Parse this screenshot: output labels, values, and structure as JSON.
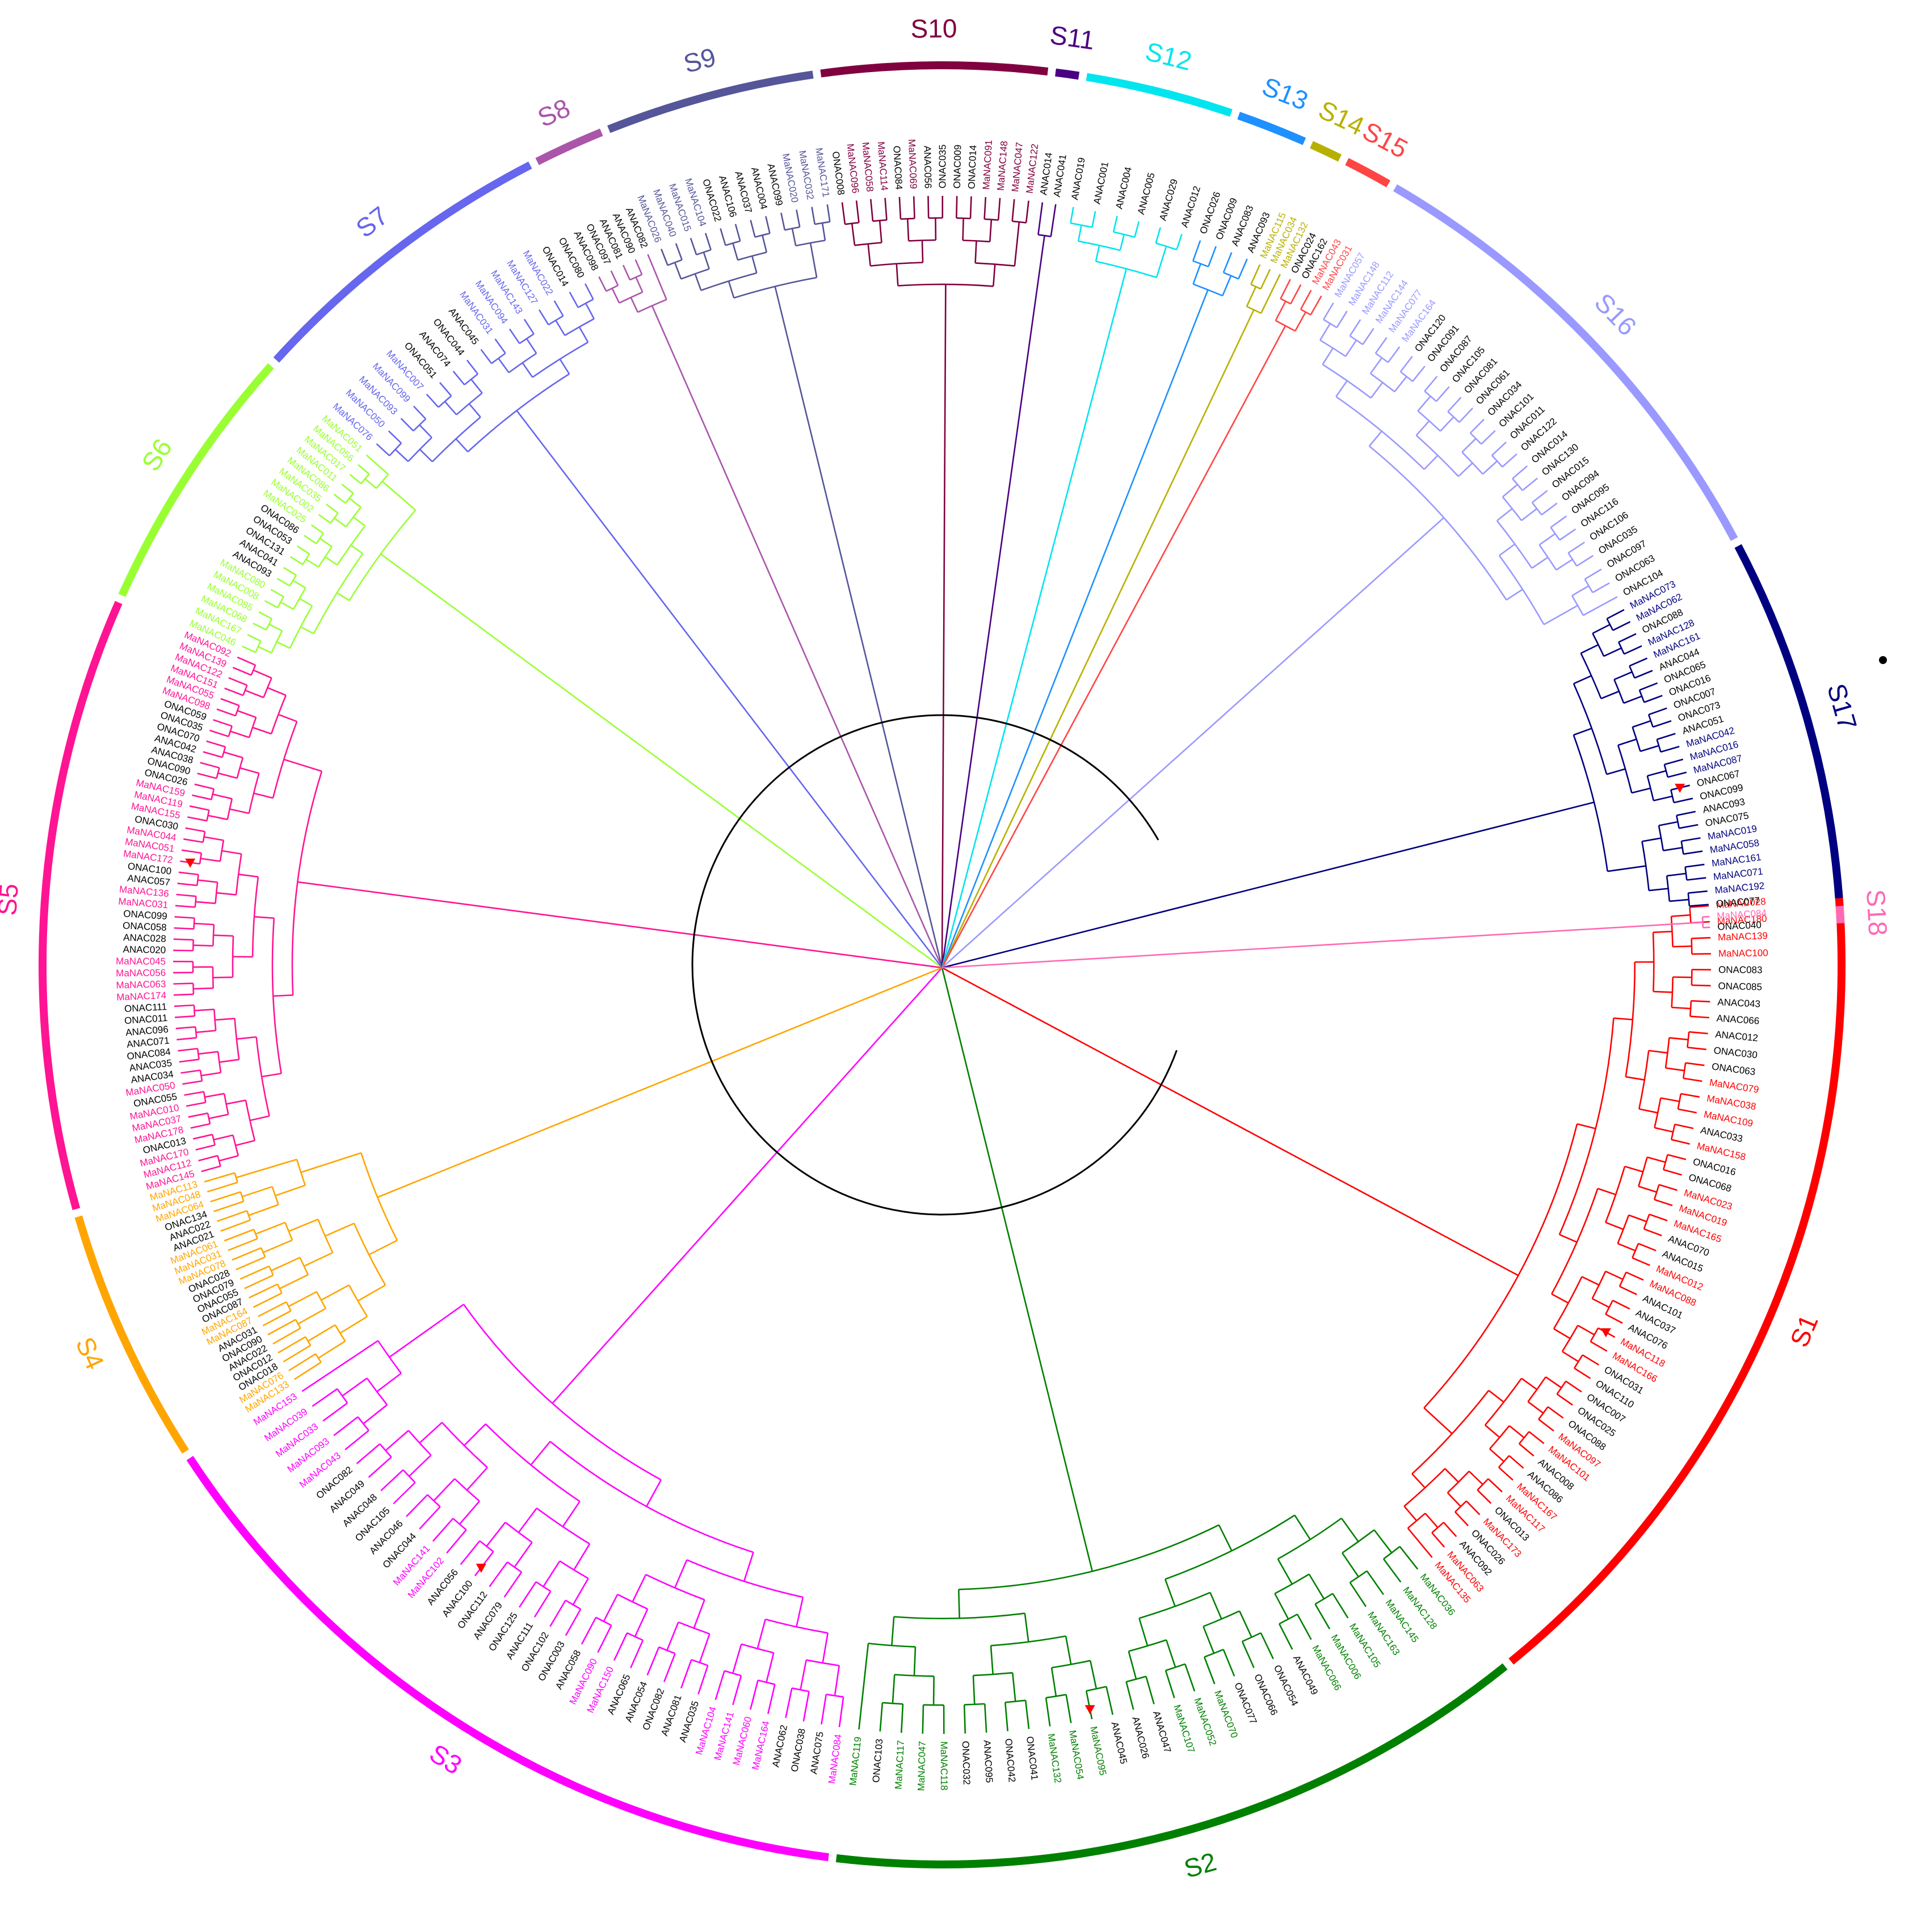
{
  "figure": {
    "subfamilies": [
      {
        "name": "S1",
        "color": "#ff0000",
        "labels": [
          "MaNAC028",
          "MaNAC180",
          "MaNAC139",
          "MaNAC100",
          "ONAC083",
          "ONAC085",
          "ANAC043",
          "ANAC066",
          "ANAC012",
          "ONAC030",
          "ONAC063",
          "MaNAC079",
          "MaNAC038",
          "MaNAC109",
          "ANAC033",
          "MaNAC158",
          "ONAC016",
          "ONAC068",
          "MaNAC023",
          "MaNAC019",
          "MaNAC165",
          "ANAC070",
          "ANAC015",
          "MaNAC012",
          "MaNAC088",
          "ANAC101",
          "ANAC037",
          "ANAC076",
          "MaNAC118",
          "MaNAC166",
          "ONAC031",
          "ONAC110",
          "ONAC007",
          "ONAC025",
          "ONAC088",
          "MaNAC097",
          "MaNAC101",
          "ANAC008",
          "ANAC086",
          "MaNAC167",
          "MaNAC117",
          "ONAC013",
          "MaNAC173",
          "ONAC026",
          "ANAC092",
          "MaNAC063",
          "MaNAC135"
        ]
      },
      {
        "name": "S2",
        "color": "#008000",
        "labels": [
          "MaNAC036",
          "MaNAC128",
          "MaNAC145",
          "MaNAC163",
          "MaNAC105",
          "MaNAC006",
          "MaNAC066",
          "ANAC049",
          "ONAC054",
          "ONAC066",
          "ONAC077",
          "MaNAC070",
          "MaNAC052",
          "MaNAC107",
          "ANAC047",
          "ANAC026",
          "ANAC045",
          "MaNAC095",
          "MaNAC054",
          "MaNAC132",
          "ONAC041",
          "ONAC042",
          "ANAC095",
          "ONAC032",
          "MaNAC118",
          "MaNAC047",
          "MaNAC117",
          "ONAC103",
          "MaNAC119"
        ]
      },
      {
        "name": "S3",
        "color": "#ff00ff",
        "labels": [
          "MaNAC084",
          "ANAC075",
          "ONAC038",
          "ANAC062",
          "MaNAC164",
          "MaNAC060",
          "MaNAC141",
          "MaNAC104",
          "ANAC035",
          "ANAC081",
          "ONAC082",
          "ANAC054",
          "ANAC065",
          "MaNAC150",
          "MaNAC090",
          "ANAC058",
          "ONAC003",
          "ONAC102",
          "ANAC111",
          "ONAC125",
          "ANAC079",
          "ONAC112",
          "ANAC100",
          "ANAC056",
          "MaNAC102",
          "MaNAC141",
          "ONAC044",
          "ANAC046",
          "ONAC105",
          "ANAC048",
          "ANAC049",
          "ONAC082",
          "MaNAC043",
          "MaNAC093",
          "MaNAC033",
          "MaNAC039",
          "MaNAC153"
        ]
      },
      {
        "name": "S4",
        "color": "#ffa500",
        "labels": [
          "MaNAC133",
          "MaNAC076",
          "ONAC018",
          "ONAC012",
          "ANAC022",
          "ONAC090",
          "ANAC031",
          "MaNAC087",
          "MaNAC164",
          "ONAC087",
          "ONAC055",
          "ONAC079",
          "ONAC028",
          "MaNAC078",
          "MaNAC031",
          "MaNAC061",
          "ANAC021",
          "ANAC022",
          "ONAC134",
          "MaNAC064",
          "MaNAC048",
          "MaNAC113"
        ]
      },
      {
        "name": "S5",
        "color": "#ff1493",
        "labels": [
          "MaNAC145",
          "MaNAC112",
          "MaNAC170",
          "ONAC013",
          "MaNAC178",
          "MaNAC037",
          "MaNAC010",
          "ONAC055",
          "MaNAC050",
          "ANAC034",
          "ANAC035",
          "ONAC084",
          "ANAC071",
          "ANAC096",
          "ONAC011",
          "ONAC111",
          "MaNAC174",
          "MaNAC063",
          "MaNAC056",
          "MaNAC045",
          "ANAC020",
          "ANAC028",
          "ONAC058",
          "ONAC099",
          "MaNAC031",
          "MaNAC136",
          "ANAC057",
          "ONAC100",
          "MaNAC172",
          "MaNAC051",
          "MaNAC044",
          "ONAC030",
          "MaNAC155",
          "MaNAC119",
          "MaNAC159",
          "ONAC026",
          "ONAC090",
          "ANAC038",
          "ANAC042",
          "ONAC070",
          "ONAC035",
          "ONAC059",
          "MaNAC098",
          "MaNAC055",
          "MaNAC151",
          "MaNAC122",
          "MaNAC139",
          "MaNAC092"
        ]
      },
      {
        "name": "S6",
        "color": "#99ff33",
        "labels": [
          "MaNAC046",
          "MaNAC167",
          "MaNAC068",
          "MaNAC085",
          "MaNAC008",
          "MaNAC080",
          "ANAC093",
          "ANAC041",
          "ONAC131",
          "ONAC053",
          "ONAC086",
          "MaNAC025",
          "MaNAC002",
          "MaNAC035",
          "MaNAC086",
          "MaNAC011",
          "MaNAC017",
          "MaNAC056",
          "MaNAC051"
        ]
      },
      {
        "name": "S7",
        "color": "#6666ee",
        "labels": [
          "MaNAC076",
          "MaNAC050",
          "MaNAC093",
          "MaNAC099",
          "MaNAC007",
          "ONAC051",
          "ANAC074",
          "ONAC044",
          "ANAC045",
          "MaNAC031",
          "MaNAC094",
          "MaNAC143",
          "MaNAC127",
          "MaNAC022",
          "ONAC014",
          "ONAC080"
        ]
      },
      {
        "name": "S8",
        "color": "#aa55aa",
        "labels": [
          "ANAC098",
          "ONAC097",
          "ANAC081",
          "ANAC090",
          "ANAC082"
        ]
      },
      {
        "name": "S9",
        "color": "#555599",
        "labels": [
          "MaNAC026",
          "MaNAC040",
          "MaNAC015",
          "MaNAC104",
          "ONAC022",
          "ANAC106",
          "ANAC037",
          "ANAC004",
          "ANAC099",
          "MaNAC020",
          "MaNAC032",
          "MaNAC171"
        ]
      },
      {
        "name": "S10",
        "color": "#800040",
        "labels": [
          "ONAC008",
          "MaNAC096",
          "MaNAC058",
          "MaNAC114",
          "ONAC084",
          "MaNAC069",
          "ANAC056",
          "ONAC035",
          "ONAC009",
          "ONAC014",
          "MaNAC091",
          "MaNAC148",
          "MaNAC047",
          "MaNAC122"
        ]
      },
      {
        "name": "S11",
        "color": "#4b0082",
        "labels": [
          "ANAC014",
          "ANAC041"
        ]
      },
      {
        "name": "S12",
        "color": "#00e5ee",
        "labels": [
          "ANAC019",
          "ANAC001",
          "ANAC004",
          "ANAC005",
          "ANAC029",
          "ANAC012"
        ]
      },
      {
        "name": "S13",
        "color": "#1e90ff",
        "labels": [
          "ONAC026",
          "ONAC009",
          "ANAC083",
          "ANAC093"
        ]
      },
      {
        "name": "S14",
        "color": "#b8b000",
        "labels": [
          "MaNAC115",
          "MaNAC034",
          "MaNAC132"
        ]
      },
      {
        "name": "S15",
        "color": "#ff4444",
        "labels": [
          "ONAC024",
          "ONAC162",
          "MaNAC043",
          "MaNAC031"
        ]
      },
      {
        "name": "S16",
        "color": "#9999ff",
        "labels": [
          "MaNAC057",
          "MaNAC148",
          "MaNAC112",
          "MaNAC144",
          "MaNAC077",
          "MaNAC164",
          "ONAC120",
          "ONAC091",
          "ONAC087",
          "ONAC105",
          "ONAC081",
          "ONAC061",
          "ONAC034",
          "ONAC101",
          "ONAC011",
          "ONAC122",
          "ONAC014",
          "ONAC130",
          "ONAC015",
          "ONAC094",
          "ONAC095",
          "ONAC116",
          "ONAC106",
          "ONAC035",
          "ONAC097",
          "ONAC063",
          "ONAC104"
        ]
      },
      {
        "name": "S17",
        "color": "#000080",
        "labels": [
          "MaNAC073",
          "MaNAC062",
          "ONAC088",
          "MaNAC128",
          "MaNAC161",
          "ANAC044",
          "ONAC065",
          "ONAC016",
          "ONAC007",
          "ONAC073",
          "ANAC051",
          "MaNAC042",
          "MaNAC016",
          "MaNAC087",
          "ONAC067",
          "ONAC099",
          "ANAC093",
          "ONAC075",
          "MaNAC019",
          "MaNAC058",
          "MaNAC161",
          "MaNAC071",
          "MaNAC192",
          "ONAC077"
        ]
      },
      {
        "name": "S18",
        "color": "#ff69b4",
        "labels": [
          "MaNAC084",
          "ONAC040"
        ]
      }
    ]
  }
}
